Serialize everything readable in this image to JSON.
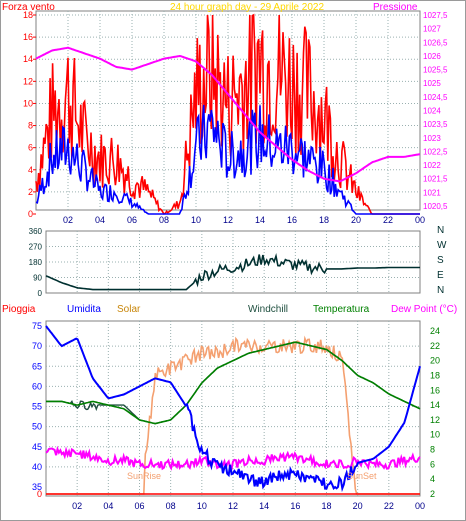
{
  "top": {
    "title": "24 hour graph day - 29 Aprile 2022",
    "left_label": "Forza vento",
    "right_label": "Pressione",
    "left_ticks": [
      "18",
      "16",
      "14",
      "12",
      "10",
      "8",
      "6",
      "4",
      "2",
      "0"
    ],
    "right_ticks": [
      "1027,5",
      "1027",
      "1026,5",
      "1026",
      "1025,5",
      "1025",
      "1024,5",
      "1024",
      "1023,5",
      "1023",
      "1022,5",
      "1022",
      "1021,5",
      "1021",
      "1020,5"
    ],
    "x_ticks": [
      "02",
      "04",
      "06",
      "08",
      "10",
      "12",
      "14",
      "16",
      "18",
      "20",
      "22",
      "00"
    ],
    "colors": {
      "gust": "#ff0000",
      "avg": "#0000ff",
      "pressure": "#ff00ff",
      "left_label": "#ff0000",
      "right_label": "#ff00ff",
      "title": "#ffd700"
    }
  },
  "mid": {
    "left_ticks": [
      "360",
      "270",
      "180",
      "90",
      "0"
    ],
    "compass": [
      "N",
      "W",
      "S",
      "E",
      "N"
    ],
    "color": "#003030"
  },
  "bottom": {
    "labels": {
      "rain": "Pioggia",
      "humidity": "Umidita",
      "solar": "Solar",
      "windchill": "Windchill",
      "temperature": "Temperatura",
      "dewpoint": "Dew Point (°C)"
    },
    "left_ticks": [
      "75",
      "70",
      "65",
      "60",
      "55",
      "50",
      "45",
      "40",
      "35",
      "0"
    ],
    "right_ticks": [
      "24",
      "22",
      "20",
      "18",
      "16",
      "14",
      "12",
      "10",
      "8",
      "6",
      "4",
      "2"
    ],
    "x_ticks": [
      "02",
      "04",
      "06",
      "08",
      "10",
      "12",
      "14",
      "16",
      "18",
      "20",
      "22",
      "00"
    ],
    "sunrise": "SunRise",
    "sunset": "SunSet",
    "colors": {
      "rain": "#ff0000",
      "humidity": "#0000ff",
      "solar": "#f4a070",
      "windchill": "#205040",
      "temperature": "#008000",
      "dewpoint": "#ff00ff"
    }
  },
  "chart_data": [
    {
      "type": "line",
      "title": "24 hour graph day - 29 Aprile 2022",
      "ylabel": "Forza vento",
      "y2label": "Pressione",
      "ylim": [
        0,
        18
      ],
      "y2lim": [
        1020.5,
        1027.5
      ],
      "x": [
        "00:00",
        "01:00",
        "02:00",
        "03:00",
        "04:00",
        "05:00",
        "06:00",
        "07:00",
        "08:00",
        "09:00",
        "10:00",
        "11:00",
        "12:00",
        "13:00",
        "14:00",
        "15:00",
        "16:00",
        "17:00",
        "18:00",
        "19:00",
        "20:00",
        "21:00",
        "22:00",
        "23:00",
        "24:00"
      ],
      "series": [
        {
          "name": "Forza vento (gust)",
          "values": [
            3,
            9,
            11,
            7,
            5,
            5,
            3,
            2,
            0,
            1,
            11,
            13,
            10,
            12,
            14,
            13,
            12,
            11,
            9,
            5,
            2,
            0,
            0,
            0,
            0
          ]
        },
        {
          "name": "Forza vento (avg)",
          "values": [
            1,
            5,
            6,
            4,
            2,
            2,
            1,
            0,
            0,
            0,
            6,
            8,
            5,
            6,
            7,
            6,
            6,
            5,
            4,
            2,
            0,
            0,
            0,
            0,
            0
          ]
        },
        {
          "name": "Pressione",
          "values": [
            1025.9,
            1026.2,
            1026.3,
            1026.1,
            1025.9,
            1025.6,
            1025.5,
            1025.7,
            1025.9,
            1026.0,
            1025.8,
            1025.3,
            1024.6,
            1023.9,
            1023.2,
            1022.7,
            1022.2,
            1021.8,
            1021.5,
            1021.4,
            1021.7,
            1022.1,
            1022.3,
            1022.3,
            1022.4
          ]
        }
      ]
    },
    {
      "type": "line",
      "ylim": [
        0,
        360
      ],
      "x": [
        "00:00",
        "01:00",
        "02:00",
        "03:00",
        "04:00",
        "05:00",
        "06:00",
        "07:00",
        "08:00",
        "09:00",
        "10:00",
        "11:00",
        "12:00",
        "13:00",
        "14:00",
        "15:00",
        "16:00",
        "17:00",
        "18:00",
        "19:00",
        "20:00",
        "21:00",
        "22:00",
        "23:00",
        "24:00"
      ],
      "series": [
        {
          "name": "Direzione vento",
          "values": [
            100,
            60,
            30,
            20,
            20,
            20,
            20,
            20,
            20,
            20,
            100,
            130,
            150,
            170,
            200,
            180,
            160,
            150,
            140,
            140,
            145,
            145,
            148,
            148,
            148
          ]
        }
      ]
    },
    {
      "type": "line",
      "ylim": [
        0,
        75
      ],
      "y2lim": [
        2,
        24
      ],
      "x": [
        "00:00",
        "01:00",
        "02:00",
        "03:00",
        "04:00",
        "05:00",
        "06:00",
        "07:00",
        "08:00",
        "09:00",
        "10:00",
        "11:00",
        "12:00",
        "13:00",
        "14:00",
        "15:00",
        "16:00",
        "17:00",
        "18:00",
        "19:00",
        "20:00",
        "21:00",
        "22:00",
        "23:00",
        "24:00"
      ],
      "series": [
        {
          "name": "Pioggia",
          "values": [
            0,
            0,
            0,
            0,
            0,
            0,
            0,
            0,
            0,
            0,
            0,
            0,
            0,
            0,
            0,
            0,
            0,
            0,
            0,
            0,
            0,
            0,
            0,
            0,
            0
          ]
        },
        {
          "name": "Umidita",
          "values": [
            75,
            70,
            72,
            62,
            57,
            58,
            60,
            62,
            61,
            55,
            44,
            40,
            39,
            37,
            36,
            38,
            38,
            37,
            36,
            36,
            41,
            42,
            45,
            51,
            65
          ]
        },
        {
          "name": "Solar",
          "values": [
            0,
            0,
            0,
            0,
            0,
            0,
            0,
            18,
            19,
            20,
            21,
            21,
            22,
            22,
            22,
            22,
            22,
            22,
            22,
            20,
            0,
            0,
            0,
            0,
            0
          ]
        },
        {
          "name": "Windchill",
          "values": [
            14.5,
            14.5,
            14,
            14,
            14,
            14,
            12,
            11.5,
            12,
            14,
            17,
            19,
            20,
            21,
            21.5,
            22,
            22.5,
            22,
            21.5,
            20,
            18,
            17,
            15.5,
            14.5,
            13.5
          ]
        },
        {
          "name": "Temperatura",
          "values": [
            14.5,
            14.5,
            14,
            14.5,
            14,
            13.5,
            12,
            11.5,
            12,
            14,
            17,
            19,
            20,
            21,
            21.5,
            22,
            22.5,
            22,
            21.5,
            20,
            18,
            17,
            15.5,
            14.5,
            13.5
          ]
        },
        {
          "name": "Dew Point (°C)",
          "values": [
            8,
            7.5,
            7.5,
            7,
            6.5,
            6.5,
            6,
            6,
            6,
            6,
            6.5,
            6,
            6,
            6.5,
            6.5,
            7,
            7,
            6.5,
            6,
            6,
            6.5,
            6,
            6,
            6.5,
            7
          ]
        }
      ]
    }
  ]
}
